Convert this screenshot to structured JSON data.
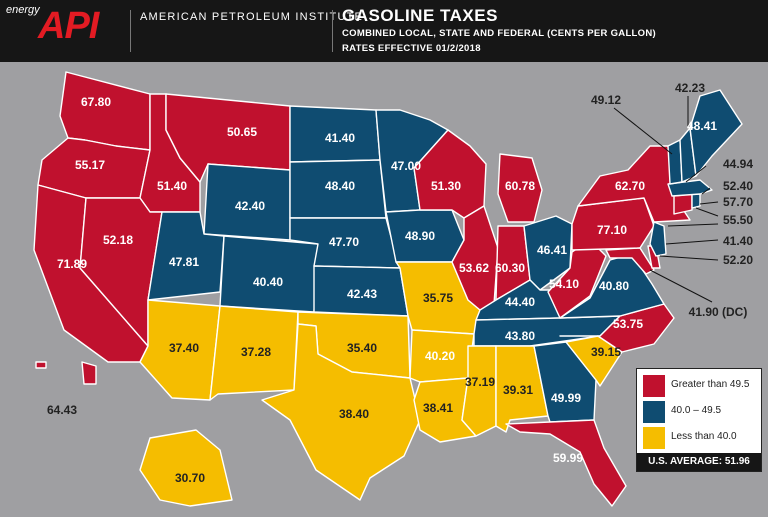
{
  "header": {
    "brand_small": "energy",
    "brand_logo": "API",
    "org": "AMERICAN PETROLEUM INSTITUTE",
    "title": "GASOLINE TAXES",
    "subtitle": "COMBINED LOCAL, STATE AND FEDERAL (CENTS PER GALLON)",
    "effective": "RATES EFFECTIVE 01/2/2018"
  },
  "colors": {
    "high": "#c0112e",
    "mid": "#0f4c71",
    "low": "#f5bd00",
    "background": "#9f9fa2"
  },
  "states": {
    "WA": "67.80",
    "OR": "55.17",
    "CA": "71.89",
    "ID": "51.40",
    "NV": "52.18",
    "MT": "50.65",
    "WY": "42.40",
    "UT": "47.81",
    "AZ": "37.40",
    "CO": "40.40",
    "NM": "37.28",
    "ND": "41.40",
    "SD": "48.40",
    "NE": "47.70",
    "KS": "42.43",
    "OK": "35.40",
    "TX": "38.40",
    "MN": "47.00",
    "IA": "48.90",
    "MO": "35.75",
    "AR": "40.20",
    "LA": "38.41",
    "WI": "51.30",
    "IL": "53.62",
    "MI": "60.78",
    "IN": "60.30",
    "OH": "46.41",
    "KY": "44.40",
    "TN": "43.80",
    "MS": "37.19",
    "AL": "39.31",
    "GA": "49.99",
    "FL": "59.99",
    "SC": "39.15",
    "NC": "53.75",
    "VA": "40.80",
    "WV": "54.10",
    "PA": "77.10",
    "NY": "62.70",
    "AK": "30.70",
    "HI": "64.43",
    "VT": "49.12",
    "NH": "42.23",
    "ME": "48.41",
    "MA": "44.94",
    "RI": "52.40",
    "CT": "57.70",
    "NJ": "41.40",
    "DE": "55.50",
    "MD": "52.20",
    "DC": "41.90 (DC)"
  },
  "legend": {
    "high_label": "Greater than 49.5",
    "mid_label": "40.0 – 49.5",
    "low_label": "Less than 40.0",
    "average": "U.S. AVERAGE: 51.96"
  }
}
